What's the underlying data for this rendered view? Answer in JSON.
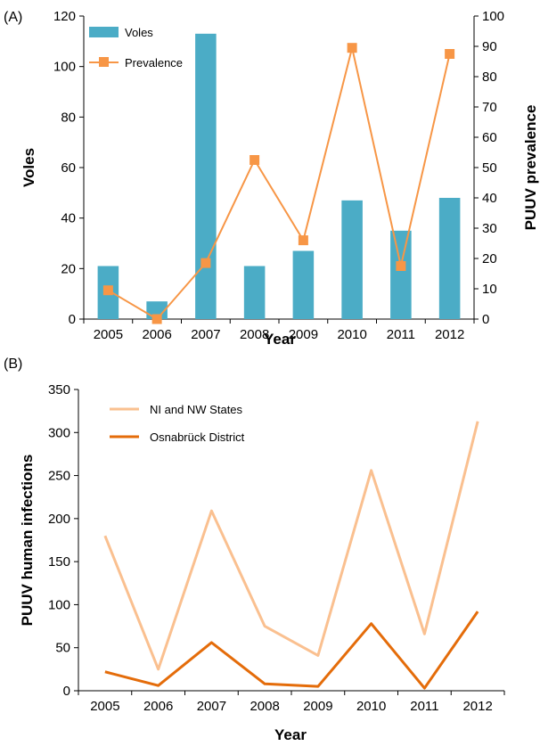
{
  "chart_data": [
    {
      "type": "bar+line",
      "panel_label": "(A)",
      "categories": [
        "2005",
        "2006",
        "2007",
        "2008",
        "2009",
        "2010",
        "2011",
        "2012"
      ],
      "xlabel": "Year",
      "ylabel": "Voles",
      "y2label": "PUUV prevalence",
      "ylim": [
        0,
        120
      ],
      "y2lim": [
        0,
        100
      ],
      "yticks": [
        "0",
        "20",
        "40",
        "60",
        "80",
        "100",
        "120"
      ],
      "y2ticks": [
        "0",
        "10",
        "20",
        "30",
        "40",
        "50",
        "60",
        "70",
        "80",
        "90",
        "100"
      ],
      "legend_position": "top-left",
      "series": [
        {
          "name": "Voles",
          "kind": "bar",
          "axis": "left",
          "color": "#4bacc6",
          "values": [
            21,
            7,
            113,
            21,
            27,
            47,
            35,
            48
          ]
        },
        {
          "name": "Prevalence",
          "kind": "line",
          "axis": "right",
          "color": "#f79646",
          "values": [
            9.5,
            0,
            18.5,
            52.5,
            26,
            89.5,
            17.5,
            87.5
          ]
        }
      ]
    },
    {
      "type": "line",
      "panel_label": "(B)",
      "categories": [
        "2005",
        "2006",
        "2007",
        "2008",
        "2009",
        "2010",
        "2011",
        "2012"
      ],
      "xlabel": "Year",
      "ylabel": "PUUV human infections",
      "ylim": [
        0,
        350
      ],
      "yticks": [
        "0",
        "50",
        "100",
        "150",
        "200",
        "250",
        "300",
        "350"
      ],
      "legend_position": "top-left",
      "series": [
        {
          "name": "NI and NW States",
          "color": "#fac090",
          "values": [
            180,
            25,
            209,
            75,
            41,
            256,
            66,
            313
          ]
        },
        {
          "name": "Osnabrück District",
          "color": "#e46c0a",
          "values": [
            22,
            6,
            56,
            8,
            5,
            78,
            3,
            92
          ]
        }
      ]
    }
  ]
}
